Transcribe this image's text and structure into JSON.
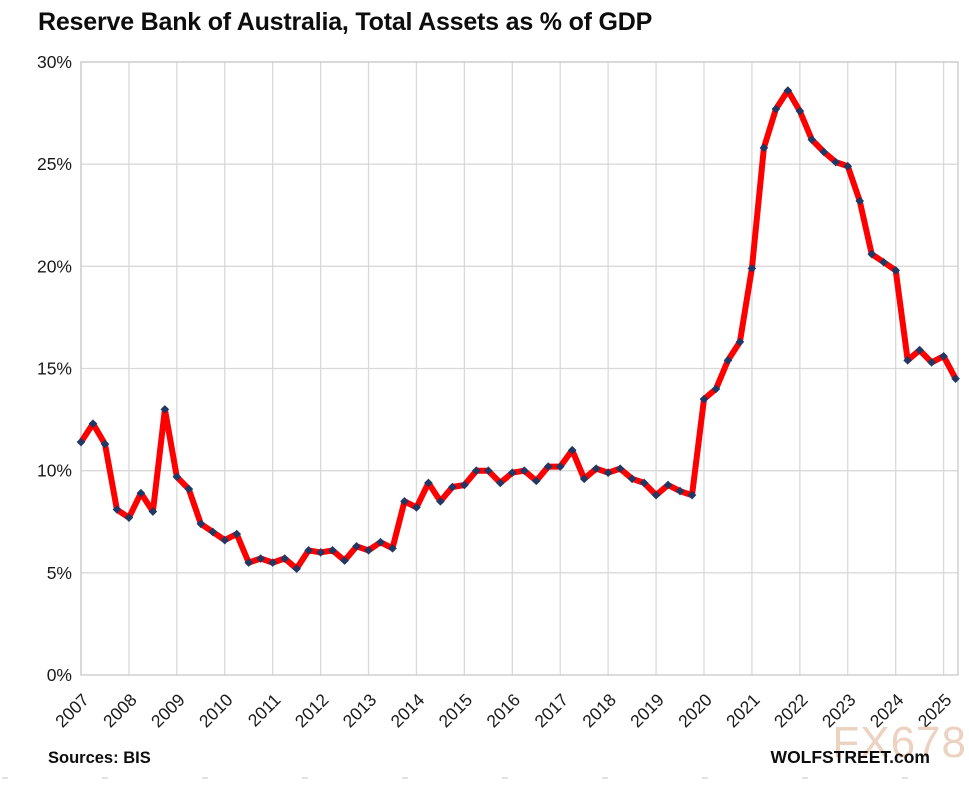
{
  "title": "Reserve Bank of Australia, Total Assets as % of GDP",
  "footer": {
    "sources": "Sources: BIS",
    "brand": "WOLFSTREET.com",
    "watermark": "FX678"
  },
  "colors": {
    "line": "#FF0000",
    "marker": "#1F3864",
    "grid": "#D9D9D9",
    "frame": "#C9C9C9",
    "tick_text": "#1a1a1a",
    "title_text": "#0d0d0d",
    "watermark_text": "#ecd2c0"
  },
  "chart_data": {
    "type": "line",
    "title": "Reserve Bank of Australia, Total Assets as % of GDP",
    "xlabel": "",
    "ylabel": "",
    "ylim": [
      0,
      30
    ],
    "y_tick_step": 5,
    "y_tick_labels": [
      "0%",
      "5%",
      "10%",
      "15%",
      "20%",
      "25%",
      "30%"
    ],
    "x_tick_labels": [
      "2007",
      "2008",
      "2009",
      "2010",
      "2011",
      "2012",
      "2013",
      "2014",
      "2015",
      "2016",
      "2017",
      "2018",
      "2019",
      "2020",
      "2021",
      "2022",
      "2023",
      "2024",
      "2025"
    ],
    "grid": true,
    "legend": "none",
    "frequency": "quarterly",
    "start_period": "2007 Q1",
    "end_period": "2025 Q2",
    "series": [
      {
        "name": "RBA Total Assets as % of GDP",
        "line_color": "#FF0000",
        "marker": "diamond",
        "marker_color": "#1F3864",
        "values": [
          11.4,
          12.3,
          11.3,
          8.1,
          7.7,
          8.9,
          8.0,
          13.0,
          9.7,
          9.1,
          7.4,
          7.0,
          6.6,
          6.9,
          5.5,
          5.7,
          5.5,
          5.7,
          5.2,
          6.1,
          6.0,
          6.1,
          5.6,
          6.3,
          6.1,
          6.5,
          6.2,
          8.5,
          8.2,
          9.4,
          8.5,
          9.2,
          9.3,
          10.0,
          10.0,
          9.4,
          9.9,
          10.0,
          9.5,
          10.2,
          10.2,
          11.0,
          9.6,
          10.1,
          9.9,
          10.1,
          9.6,
          9.4,
          8.8,
          9.3,
          9.0,
          8.8,
          13.5,
          14.0,
          15.4,
          16.3,
          19.9,
          25.8,
          27.7,
          28.6,
          27.6,
          26.2,
          25.6,
          25.1,
          24.9,
          23.2,
          20.6,
          20.2,
          19.8,
          15.4,
          15.9,
          15.3,
          15.6,
          14.5
        ]
      }
    ]
  }
}
